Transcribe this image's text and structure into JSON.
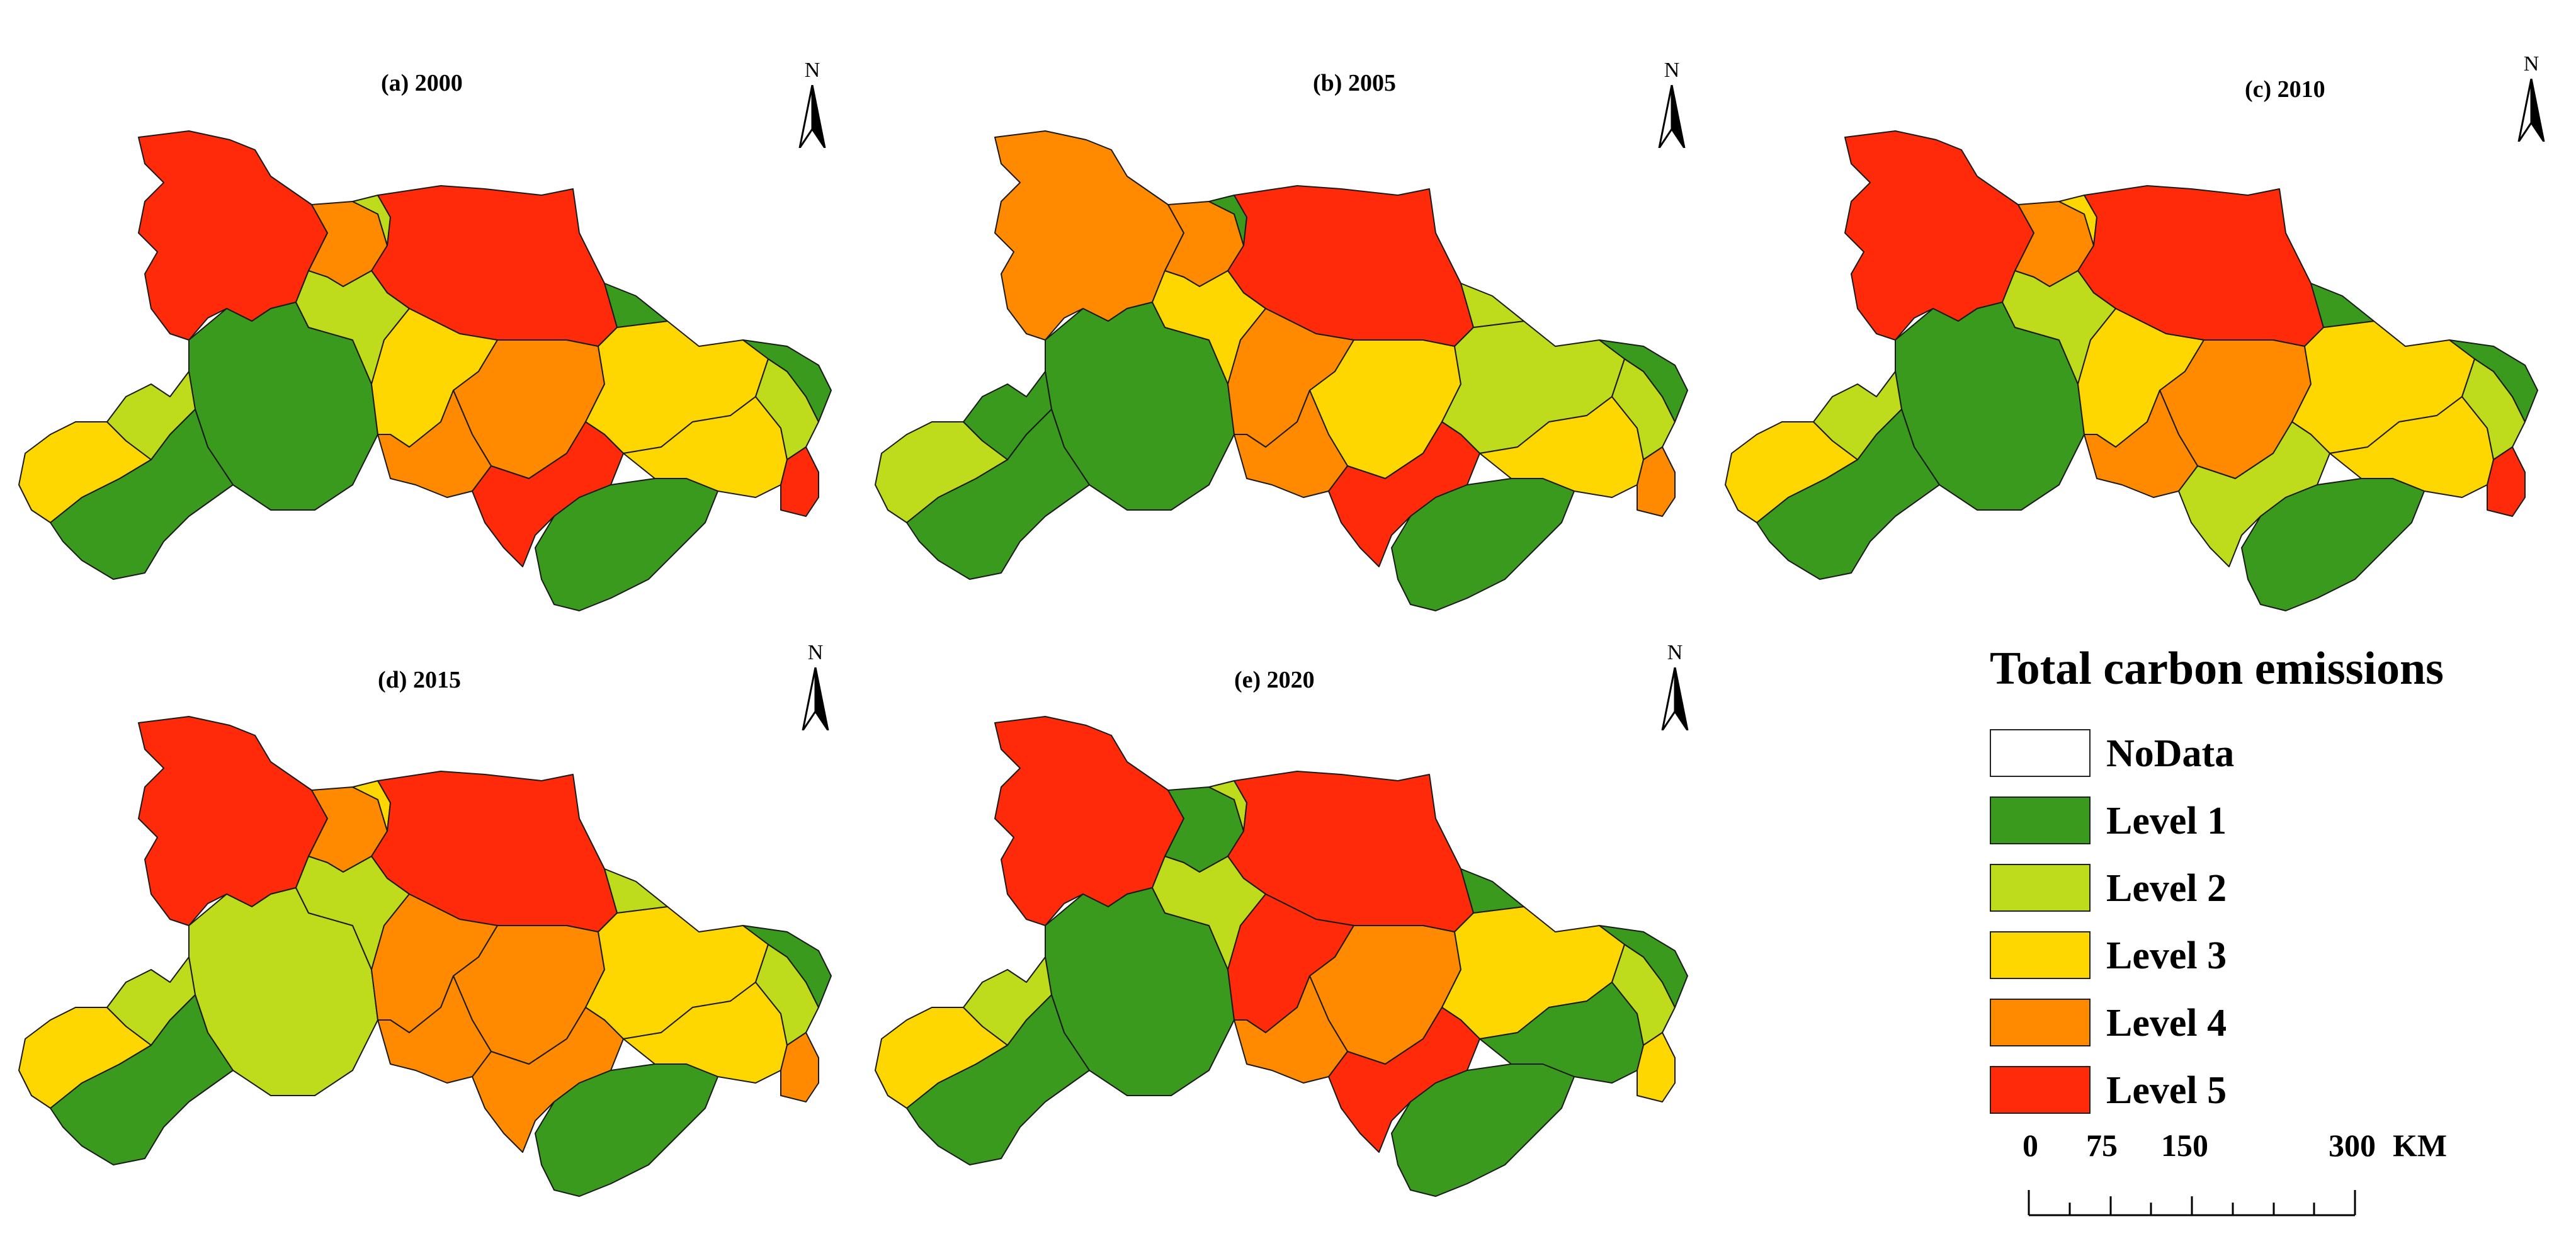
{
  "panels": [
    {
      "title": "(a) 2000",
      "colors": {
        "A": "l5",
        "B": "l4",
        "C": "l2",
        "D": "l5",
        "E": "l1",
        "F": "l2",
        "G": "l3",
        "H": "l4",
        "I": "l3",
        "J": "l1",
        "K": "l5",
        "L": "l4",
        "M": "l3",
        "N": "l1",
        "O": "l2",
        "P": "l1",
        "Q": "l1",
        "R": "l3",
        "S": "l2",
        "T": "l5"
      }
    },
    {
      "title": "(b) 2005",
      "colors": {
        "A": "l4",
        "B": "l4",
        "C": "l1",
        "D": "l5",
        "E": "l1",
        "F": "l3",
        "G": "l4",
        "H": "l3",
        "I": "l2",
        "J": "l2",
        "K": "l5",
        "L": "l4",
        "M": "l3",
        "N": "l1",
        "O": "l2",
        "P": "l1",
        "Q": "l1",
        "R": "l2",
        "S": "l1",
        "T": "l4"
      }
    },
    {
      "title": "(c) 2010",
      "colors": {
        "A": "l5",
        "B": "l4",
        "C": "l3",
        "D": "l5",
        "E": "l1",
        "F": "l2",
        "G": "l3",
        "H": "l4",
        "I": "l3",
        "J": "l1",
        "K": "l2",
        "L": "l4",
        "M": "l3",
        "N": "l1",
        "O": "l2",
        "P": "l1",
        "Q": "l1",
        "R": "l3",
        "S": "l2",
        "T": "l5"
      }
    },
    {
      "title": "(d) 2015",
      "colors": {
        "A": "l5",
        "B": "l4",
        "C": "l3",
        "D": "l5",
        "E": "l2",
        "F": "l2",
        "G": "l4",
        "H": "l4",
        "I": "l3",
        "J": "l2",
        "K": "l4",
        "L": "l4",
        "M": "l3",
        "N": "l1",
        "O": "l2",
        "P": "l1",
        "Q": "l1",
        "R": "l3",
        "S": "l2",
        "T": "l4"
      }
    },
    {
      "title": "(e) 2020",
      "colors": {
        "A": "l5",
        "B": "l1",
        "C": "l2",
        "D": "l5",
        "E": "l1",
        "F": "l2",
        "G": "l5",
        "H": "l4",
        "I": "l3",
        "J": "l1",
        "K": "l5",
        "L": "l4",
        "M": "l1",
        "N": "l1",
        "O": "l2",
        "P": "l1",
        "Q": "l1",
        "R": "l3",
        "S": "l2",
        "T": "l3"
      }
    }
  ],
  "north_label": "N",
  "legend": {
    "title": "Total carbon emissions",
    "items": [
      {
        "key": "nodata",
        "label": "NoData",
        "color": "#ffffff"
      },
      {
        "key": "l1",
        "label": "Level 1",
        "color": "#3a9a1e"
      },
      {
        "key": "l2",
        "label": "Level 2",
        "color": "#bfdc1c"
      },
      {
        "key": "l3",
        "label": "Level 3",
        "color": "#ffd700"
      },
      {
        "key": "l4",
        "label": "Level 4",
        "color": "#ff8a00"
      },
      {
        "key": "l5",
        "label": "Level 5",
        "color": "#ff2a0a"
      }
    ]
  },
  "scale_bar": {
    "labels": [
      "0",
      "75",
      "150",
      "300"
    ],
    "unit": "KM"
  }
}
